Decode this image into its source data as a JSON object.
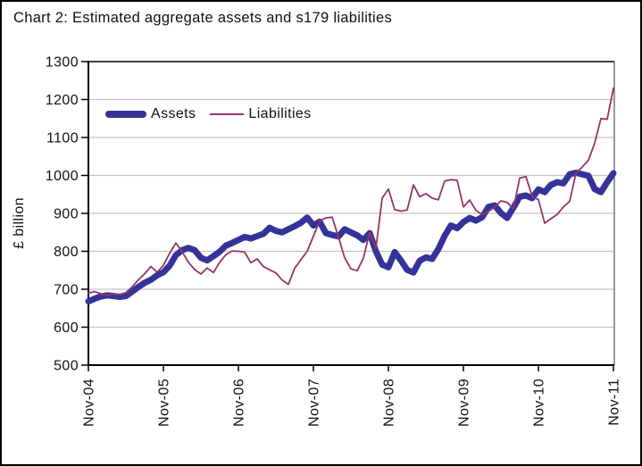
{
  "chart_data": {
    "type": "line",
    "title": "Chart 2: Estimated aggregate assets and s179 liabilities",
    "ylabel": "£ billion",
    "ylim": [
      500,
      1300
    ],
    "ytick_step": 100,
    "y_tick_labels": [
      "500",
      "600",
      "700",
      "800",
      "900",
      "1000",
      "1100",
      "1200",
      "1300"
    ],
    "x_tick_labels": [
      "Nov-04",
      "Nov-05",
      "Nov-06",
      "Nov-07",
      "Nov-08",
      "Nov-09",
      "Nov-10",
      "Nov-11"
    ],
    "x_resolution": "monthly",
    "points_per_year": 12,
    "grid": "horizontal",
    "legend_position": "top-left-inside",
    "colors": {
      "assets": "#333399",
      "liabilities": "#993366",
      "gridline": "#C4C4C4",
      "axis": "#000000"
    },
    "series": [
      {
        "name": "Assets",
        "color": "#333399",
        "values": [
          668,
          675,
          681,
          684,
          682,
          680,
          682,
          694,
          706,
          717,
          725,
          737,
          745,
          762,
          790,
          803,
          809,
          803,
          783,
          776,
          787,
          799,
          815,
          822,
          830,
          838,
          834,
          840,
          846,
          862,
          854,
          850,
          858,
          866,
          875,
          889,
          868,
          878,
          848,
          843,
          839,
          858,
          850,
          842,
          830,
          848,
          800,
          765,
          758,
          798,
          776,
          751,
          744,
          775,
          784,
          780,
          806,
          841,
          868,
          861,
          877,
          888,
          881,
          890,
          917,
          921,
          901,
          888,
          915,
          944,
          947,
          940,
          963,
          956,
          975,
          982,
          979,
          1003,
          1007,
          1003,
          999,
          964,
          956,
          982,
          1006
        ]
      },
      {
        "name": "Liabilities",
        "color": "#993366",
        "values": [
          690,
          694,
          688,
          684,
          687,
          686,
          691,
          706,
          725,
          741,
          760,
          745,
          763,
          795,
          822,
          799,
          771,
          752,
          740,
          756,
          744,
          771,
          791,
          801,
          800,
          798,
          770,
          780,
          760,
          751,
          743,
          724,
          713,
          755,
          778,
          800,
          840,
          880,
          888,
          890,
          838,
          783,
          754,
          749,
          782,
          850,
          808,
          940,
          964,
          910,
          906,
          909,
          975,
          944,
          952,
          940,
          936,
          985,
          989,
          987,
          917,
          935,
          908,
          897,
          905,
          917,
          933,
          929,
          912,
          993,
          997,
          945,
          936,
          874,
          886,
          897,
          917,
          932,
          1006,
          1022,
          1040,
          1085,
          1150,
          1148,
          1230
        ]
      }
    ]
  },
  "legend": {
    "assets_label": "Assets",
    "liabilities_label": "Liabilities"
  }
}
